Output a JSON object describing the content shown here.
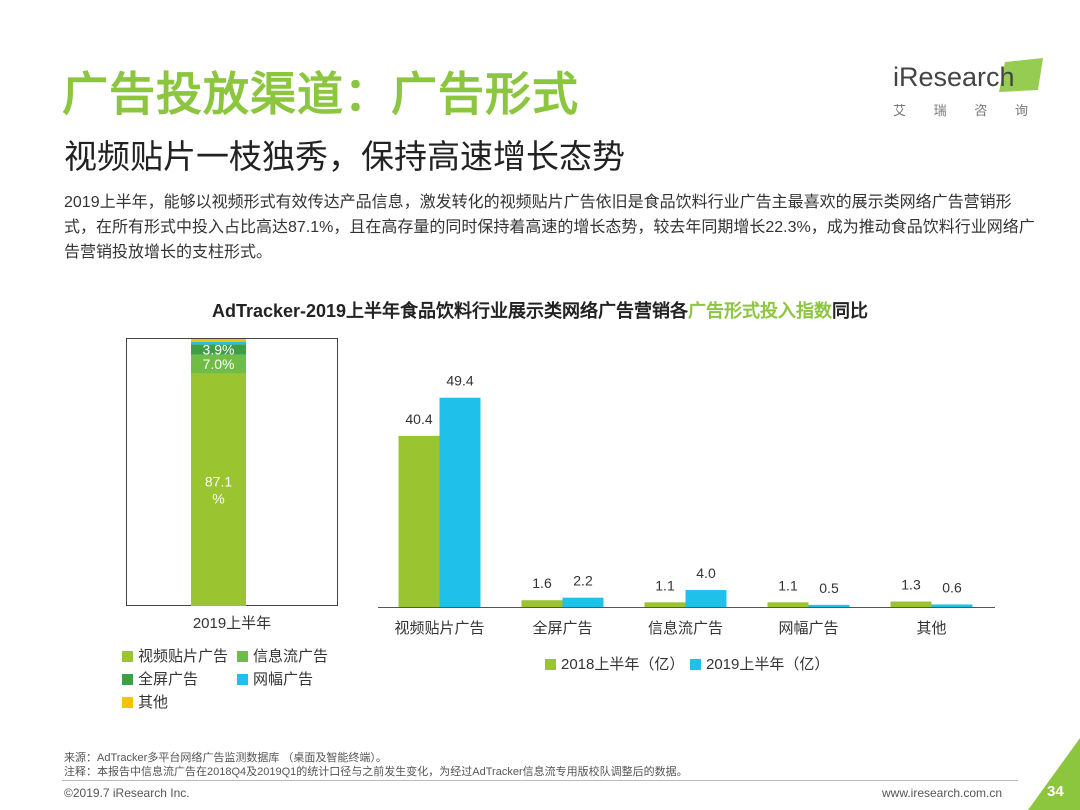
{
  "header": {
    "title": "广告投放渠道：广告形式",
    "subtitle": "视频贴片一枝独秀，保持高速增长态势",
    "paragraph": "2019上半年，能够以视频形式有效传达产品信息，激发转化的视频贴片广告依旧是食品饮料行业广告主最喜欢的展示类网络广告营销形式，在所有形式中投入占比高达87.1%，且在高存量的同时保持着高速的增长态势，较去年同期增长22.3%，成为推动食品饮料行业网络广告营销投放增长的支柱形式。"
  },
  "logo": {
    "text": "iResearch",
    "cn": [
      "艾",
      "瑞",
      "咨",
      "询"
    ]
  },
  "chart_title": {
    "prefix": "AdTracker-2019上半年食品饮料行业展示类网络广告营销各",
    "highlight": "广告形式投入指数",
    "suffix": "同比"
  },
  "colors": {
    "video": "#9ac430",
    "info_flow": "#6fbd45",
    "fullscreen": "#3e9f47",
    "banner": "#1fc0ea",
    "other": "#f5c400",
    "bar2018": "#9ac430",
    "bar2019": "#1fc0ea",
    "title_green": "#8cc63f",
    "page_badge": "#8cc63f"
  },
  "chart_data": [
    {
      "type": "bar",
      "stacked": true,
      "categories": [
        "2019上半年"
      ],
      "series": [
        {
          "name": "视频贴片广告",
          "values": [
            87.1
          ],
          "label": "87.1\n%"
        },
        {
          "name": "信息流广告",
          "values": [
            7.0
          ],
          "label": "7.0%"
        },
        {
          "name": "全屏广告",
          "values": [
            3.9
          ],
          "label": "3.9%"
        },
        {
          "name": "网幅广告",
          "values": [
            1.0
          ],
          "label": ""
        },
        {
          "name": "其他",
          "values": [
            1.0
          ],
          "label": ""
        }
      ],
      "legend": [
        {
          "name": "视频贴片广告",
          "color_key": "video"
        },
        {
          "name": "信息流广告",
          "color_key": "info_flow"
        },
        {
          "name": "全屏广告",
          "color_key": "fullscreen"
        },
        {
          "name": "网幅广告",
          "color_key": "banner"
        },
        {
          "name": "其他",
          "color_key": "other"
        }
      ],
      "ylim": [
        0,
        100
      ],
      "legend_position": "bottom"
    },
    {
      "type": "bar",
      "categories": [
        "视频贴片广告",
        "全屏广告",
        "信息流广告",
        "网幅广告",
        "其他"
      ],
      "series": [
        {
          "name": "2018上半年（亿）",
          "values": [
            40.4,
            1.6,
            1.1,
            1.1,
            1.3
          ],
          "labels": [
            "40.4",
            "1.6",
            "1.1",
            "1.1",
            "1.3"
          ]
        },
        {
          "name": "2019上半年（亿）",
          "values": [
            49.4,
            2.2,
            4.0,
            0.5,
            0.6
          ],
          "labels": [
            "49.4",
            "2.2",
            "4.0",
            "0.5",
            "0.6"
          ]
        }
      ],
      "ylim": [
        0,
        55
      ],
      "legend_position": "bottom"
    }
  ],
  "footer": {
    "source": "来源：AdTracker多平台网络广告监测数据库 （桌面及智能终端）。",
    "note": "注释：本报告中信息流广告在2018Q4及2019Q1的统计口径与之前发生变化，为经过AdTracker信息流专用版校队调整后的数据。",
    "copyright": "©2019.7 iResearch Inc.",
    "website": "www.iresearch.com.cn",
    "page": "34"
  }
}
